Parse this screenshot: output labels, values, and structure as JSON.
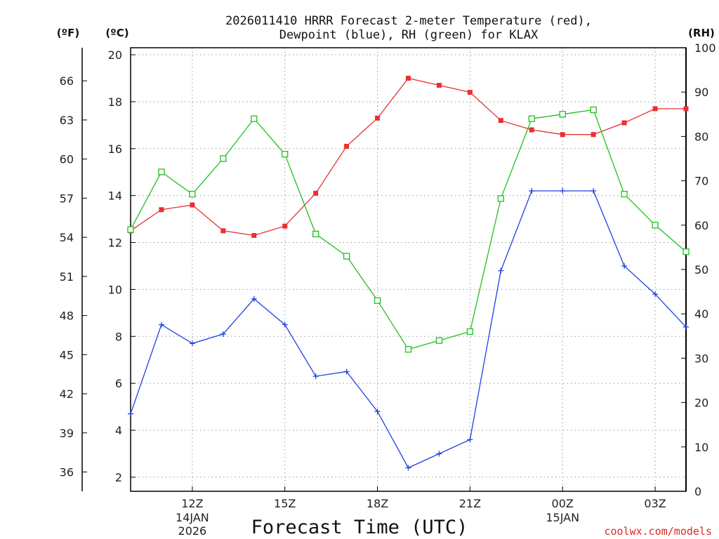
{
  "chart_data": {
    "type": "line",
    "title_line1": "2026011410 HRRR Forecast 2-meter Temperature (red),",
    "title_line2": "Dewpoint (blue), RH (green) for KLAX",
    "xlabel": "Forecast Time (UTC)",
    "credit": "coolwx.com/models",
    "units": {
      "fahrenheit": "(ºF)",
      "celsius": "(ºC)",
      "rh": "(RH)"
    },
    "x": [
      10,
      11,
      12,
      13,
      14,
      15,
      16,
      17,
      18,
      19,
      20,
      21,
      22,
      23,
      24,
      25,
      26,
      27,
      28
    ],
    "xlim": [
      10,
      28
    ],
    "x_ticks": [
      {
        "x": 12,
        "label": "12Z",
        "sub": [
          "14JAN",
          "2026"
        ]
      },
      {
        "x": 15,
        "label": "15Z",
        "sub": []
      },
      {
        "x": 18,
        "label": "18Z",
        "sub": []
      },
      {
        "x": 21,
        "label": "21Z",
        "sub": []
      },
      {
        "x": 24,
        "label": "00Z",
        "sub": [
          "15JAN"
        ]
      },
      {
        "x": 27,
        "label": "03Z",
        "sub": []
      }
    ],
    "celsius_axis": {
      "min": 1.4,
      "max": 20.3,
      "ticks": [
        "2",
        "4",
        "6",
        "8",
        "10",
        "12",
        "14",
        "16",
        "18",
        "20"
      ]
    },
    "fahrenheit_axis": {
      "ticks": [
        "36",
        "39",
        "42",
        "45",
        "48",
        "51",
        "54",
        "57",
        "60",
        "63",
        "66"
      ]
    },
    "rh_axis": {
      "min": 0,
      "max": 100,
      "ticks": [
        "0",
        "10",
        "20",
        "30",
        "40",
        "50",
        "60",
        "70",
        "80",
        "90",
        "100"
      ]
    },
    "series": [
      {
        "name": "2-meter Temperature",
        "units": "C",
        "axis": "celsius",
        "color": "#e83030",
        "marker": "filled-square",
        "values": [
          12.5,
          13.4,
          13.6,
          12.5,
          12.3,
          12.7,
          14.1,
          16.1,
          17.3,
          19.0,
          18.7,
          18.4,
          17.2,
          16.8,
          16.6,
          16.6,
          17.1,
          17.7,
          17.7
        ]
      },
      {
        "name": "Dewpoint",
        "units": "C",
        "axis": "celsius",
        "color": "#2040e0",
        "marker": "plus",
        "values": [
          4.7,
          8.5,
          7.7,
          8.1,
          9.6,
          8.5,
          6.3,
          6.5,
          4.8,
          2.4,
          3.0,
          3.6,
          10.8,
          14.2,
          14.2,
          14.2,
          11.0,
          9.8,
          8.4
        ]
      },
      {
        "name": "RH",
        "units": "%",
        "axis": "rh",
        "color": "#20c020",
        "marker": "open-square",
        "values": [
          59,
          72,
          67,
          75,
          84,
          76,
          58,
          53,
          43,
          32,
          34,
          36,
          66,
          84,
          85,
          86,
          67,
          60,
          54
        ]
      }
    ]
  }
}
